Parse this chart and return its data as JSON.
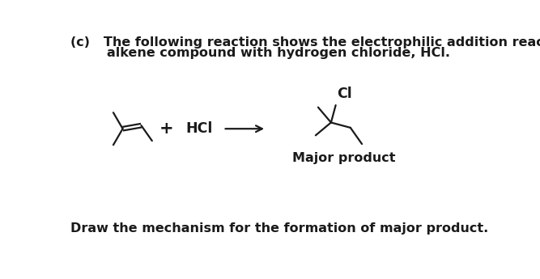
{
  "background_color": "#ffffff",
  "text_color": "#1a1a1a",
  "title_line1": "(c)   The following reaction shows the electrophilic addition reaction between an",
  "title_line2": "        alkene compound with hydrogen chloride, HCl.",
  "bottom_text": "Draw the mechanism for the formation of major product.",
  "plus_sign": "+",
  "hcl_label": "HCl",
  "major_label": "Major product",
  "cl_label": "Cl",
  "font_size_main": 11.5,
  "font_size_chem": 11.5,
  "lw": 1.6
}
